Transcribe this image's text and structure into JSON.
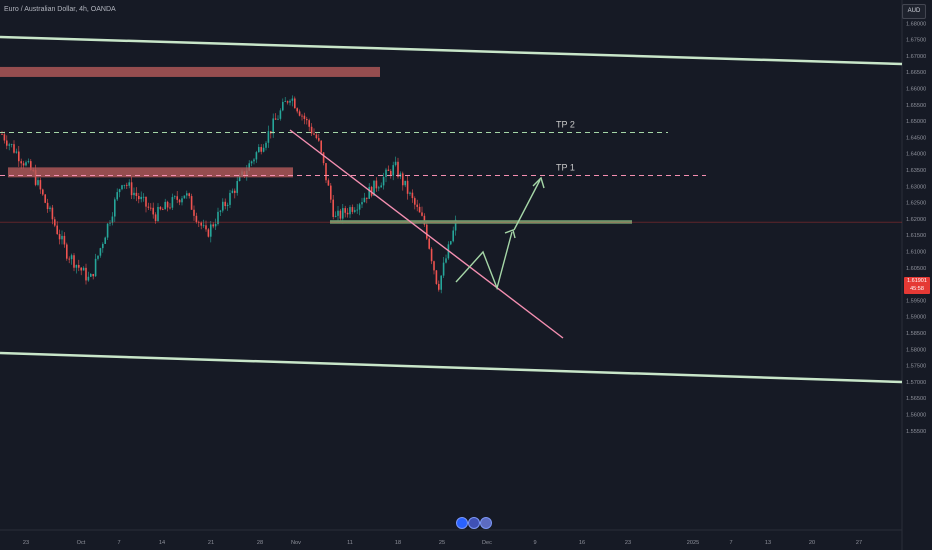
{
  "header": {
    "title": "Euro / Australian Dollar, 4h, OANDA",
    "currency": "AUD"
  },
  "price_badge": {
    "price": "1.61901",
    "countdown": "45:58"
  },
  "y_ticks": [
    "1.68500",
    "1.68000",
    "1.67500",
    "1.67000",
    "1.66500",
    "1.66000",
    "1.65500",
    "1.65000",
    "1.64500",
    "1.64000",
    "1.63500",
    "1.63000",
    "1.62500",
    "1.62000",
    "1.61500",
    "1.61000",
    "1.60500",
    "1.60000",
    "1.59500",
    "1.59000",
    "1.58500",
    "1.58000",
    "1.57500",
    "1.57000",
    "1.56500",
    "1.56000",
    "1.55500"
  ],
  "x_ticks": [
    "23",
    "Oct",
    "7",
    "14",
    "21",
    "28",
    "Nov",
    "11",
    "18",
    "25",
    "Dec",
    "9",
    "16",
    "23",
    "2025",
    "7",
    "13",
    "20",
    "27"
  ],
  "annotations": {
    "tp1": "TP 1",
    "tp2": "TP 2"
  },
  "colors": {
    "background": "#161a25",
    "up_candle": "#26a69a",
    "down_candle": "#ef5350",
    "channel": "#c8e6c9",
    "resistance_zone": "#b55a5a",
    "support_zone": "#6e9a6e",
    "trendline": "#f48fb1",
    "tp2_line": "#a5d6a7",
    "tp1_line": "#f48fb1",
    "arrow": "#a5d6a7",
    "last_price": "#e53935"
  },
  "icons": [
    "bottom-marker-icon-1",
    "bottom-marker-icon-2"
  ],
  "chart_data": {
    "type": "candlestick",
    "symbol": "EURAUD",
    "interval": "4h",
    "ylim": [
      1.5525,
      1.6875
    ],
    "price_scale": "right",
    "grid": false,
    "last_price": 1.61901,
    "key_points": [
      {
        "date": "Sep 20",
        "price": 1.646
      },
      {
        "date": "Sep 25",
        "price": 1.634
      },
      {
        "date": "Oct 1",
        "price": 1.61
      },
      {
        "date": "Oct 3",
        "price": 1.601
      },
      {
        "date": "Oct 8",
        "price": 1.632
      },
      {
        "date": "Oct 14",
        "price": 1.621
      },
      {
        "date": "Oct 18",
        "price": 1.628
      },
      {
        "date": "Oct 21",
        "price": 1.615
      },
      {
        "date": "Oct 24",
        "price": 1.627
      },
      {
        "date": "Oct 29",
        "price": 1.646
      },
      {
        "date": "Nov 1",
        "price": 1.658
      },
      {
        "date": "Nov 6",
        "price": 1.644
      },
      {
        "date": "Nov 8",
        "price": 1.62
      },
      {
        "date": "Nov 12",
        "price": 1.625
      },
      {
        "date": "Nov 15",
        "price": 1.636
      },
      {
        "date": "Nov 19",
        "price": 1.627
      },
      {
        "date": "Nov 22",
        "price": 1.618
      },
      {
        "date": "Nov 25",
        "price": 1.599
      },
      {
        "date": "Nov 28",
        "price": 1.619
      }
    ],
    "drawings": {
      "tp1_level": 1.6333,
      "tp2_level": 1.6465,
      "resistance_zone_upper": [
        1.664,
        1.666
      ],
      "resistance_zone_lower": [
        1.6335,
        1.6355
      ],
      "support_zone": [
        1.6184,
        1.6196
      ]
    }
  }
}
